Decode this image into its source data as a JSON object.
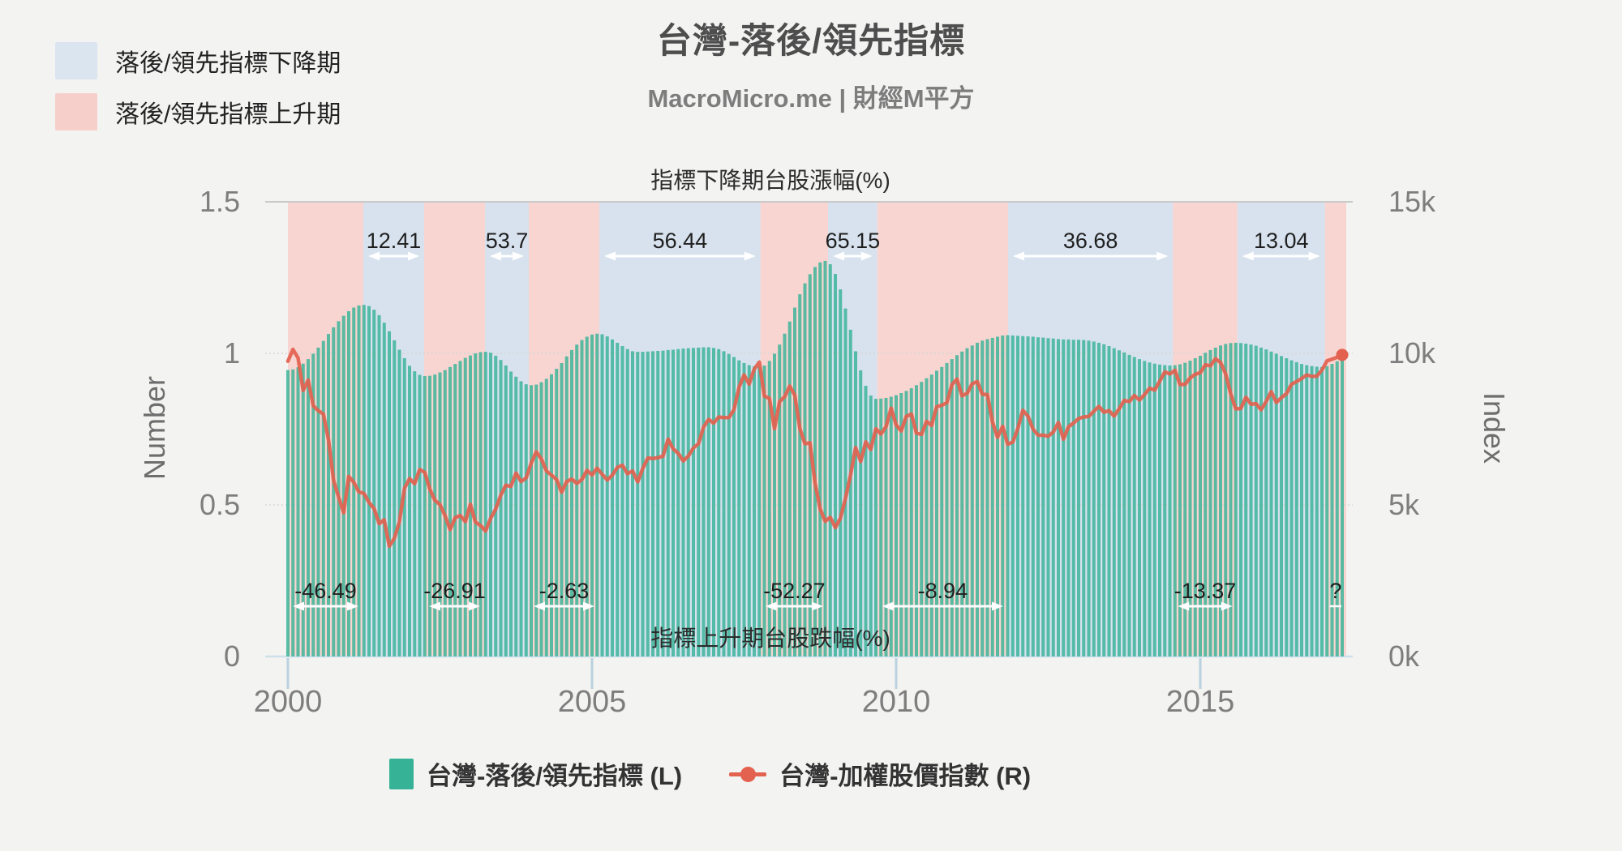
{
  "title": "台灣-落後/領先指標",
  "subtitle": "MacroMicro.me | 財經M平方",
  "zone_legend": {
    "down_label": "落後/領先指標下降期",
    "up_label": "落後/領先指標上升期"
  },
  "series_legend": {
    "bar_label": "台灣-落後/領先指標 (L)",
    "line_label": "台灣-加權股價指數 (R)"
  },
  "colors": {
    "background": "#f3f3f2",
    "band_down": "#d7e2ee",
    "band_up": "#f8d5d1",
    "swatch_down": "#dae5f0",
    "swatch_up": "#f7cfca",
    "bar": "#36b296",
    "line": "#e3614f",
    "grid": "#d6d6d6",
    "grid_strong": "#c9c9c9",
    "axis_line": "#cfe0e9",
    "tick": "#b9d2dd",
    "axis_text": "#7e7e7e",
    "axis_title_text": "#6e6e6e",
    "annotation_text": "#1f1f1f",
    "header_text": "#2b2b2b"
  },
  "chart_data": {
    "type": "bar+line",
    "title": "台灣-落後/領先指標",
    "x": {
      "start_year": 2000,
      "step_months": 1,
      "end_label": "2017-05",
      "tick_values": [
        2000,
        2005,
        2010,
        2015
      ],
      "tick_labels": [
        "2000",
        "2005",
        "2010",
        "2015"
      ]
    },
    "left_axis": {
      "title": "Number",
      "min": 0,
      "max": 1.5,
      "tick_values": [
        0,
        0.5,
        1,
        1.5
      ],
      "tick_labels": [
        "0",
        "0.5",
        "1",
        "1.5"
      ]
    },
    "right_axis": {
      "title": "Index",
      "min": 0,
      "max": 15,
      "tick_values": [
        0,
        5,
        10,
        15
      ],
      "tick_labels": [
        "0k",
        "5k",
        "10k",
        "15k"
      ],
      "unit": "thousand points"
    },
    "headers": {
      "top": "指標下降期台股漲幅(%)",
      "bottom": "指標上升期台股跌幅(%)"
    },
    "bands": [
      {
        "type": "up",
        "start": 2000.0,
        "end": 2001.24,
        "note": "-46.49"
      },
      {
        "type": "down",
        "start": 2001.24,
        "end": 2002.24,
        "note": "12.41"
      },
      {
        "type": "up",
        "start": 2002.24,
        "end": 2003.24,
        "note": "-26.91"
      },
      {
        "type": "down",
        "start": 2003.24,
        "end": 2003.96,
        "note": "53.7"
      },
      {
        "type": "up",
        "start": 2003.96,
        "end": 2005.12,
        "note": "-2.63"
      },
      {
        "type": "down",
        "start": 2005.12,
        "end": 2007.77,
        "note": "56.44"
      },
      {
        "type": "up",
        "start": 2007.77,
        "end": 2008.88,
        "note": "-52.27"
      },
      {
        "type": "down",
        "start": 2008.88,
        "end": 2009.69,
        "note": "65.15"
      },
      {
        "type": "up",
        "start": 2009.69,
        "end": 2011.84,
        "note": "-8.94"
      },
      {
        "type": "down",
        "start": 2011.84,
        "end": 2014.55,
        "note": "36.68"
      },
      {
        "type": "up",
        "start": 2014.55,
        "end": 2015.61,
        "note": "-13.37"
      },
      {
        "type": "down",
        "start": 2015.61,
        "end": 2017.05,
        "note": "13.04"
      },
      {
        "type": "up",
        "start": 2017.05,
        "end": 2017.4,
        "note": "?"
      }
    ],
    "series": [
      {
        "name": "台灣-落後/領先指標 (L)",
        "type": "bar",
        "axis": "left",
        "values": [
          0.945,
          0.947,
          0.954,
          0.966,
          0.981,
          0.999,
          1.019,
          1.041,
          1.064,
          1.086,
          1.106,
          1.124,
          1.139,
          1.151,
          1.158,
          1.16,
          1.156,
          1.144,
          1.126,
          1.101,
          1.073,
          1.043,
          1.012,
          0.984,
          0.959,
          0.941,
          0.929,
          0.925,
          0.926,
          0.93,
          0.937,
          0.945,
          0.955,
          0.965,
          0.975,
          0.985,
          0.993,
          1.0,
          1.004,
          1.005,
          1.002,
          0.992,
          0.978,
          0.96,
          0.94,
          0.923,
          0.908,
          0.898,
          0.895,
          0.897,
          0.905,
          0.916,
          0.931,
          0.949,
          0.968,
          0.99,
          1.011,
          1.029,
          1.044,
          1.055,
          1.062,
          1.065,
          1.063,
          1.056,
          1.046,
          1.035,
          1.024,
          1.014,
          1.007,
          1.005,
          1.005,
          1.006,
          1.007,
          1.008,
          1.009,
          1.011,
          1.012,
          1.014,
          1.016,
          1.017,
          1.018,
          1.019,
          1.02,
          1.02,
          1.018,
          1.014,
          1.007,
          0.998,
          0.988,
          0.977,
          0.968,
          0.961,
          0.957,
          0.955,
          0.96,
          0.975,
          0.999,
          1.029,
          1.065,
          1.105,
          1.151,
          1.195,
          1.231,
          1.261,
          1.285,
          1.3,
          1.305,
          1.294,
          1.262,
          1.211,
          1.148,
          1.078,
          1.007,
          0.944,
          0.893,
          0.861,
          0.85,
          0.851,
          0.853,
          0.857,
          0.862,
          0.869,
          0.876,
          0.885,
          0.895,
          0.906,
          0.918,
          0.93,
          0.943,
          0.955,
          0.968,
          0.981,
          0.994,
          1.006,
          1.017,
          1.026,
          1.035,
          1.042,
          1.047,
          1.051,
          1.055,
          1.059,
          1.06,
          1.059,
          1.058,
          1.057,
          1.056,
          1.055,
          1.053,
          1.052,
          1.05,
          1.049,
          1.047,
          1.046,
          1.046,
          1.045,
          1.045,
          1.044,
          1.042,
          1.039,
          1.035,
          1.03,
          1.024,
          1.017,
          1.01,
          1.003,
          0.995,
          0.988,
          0.981,
          0.975,
          0.97,
          0.966,
          0.963,
          0.961,
          0.96,
          0.961,
          0.964,
          0.969,
          0.976,
          0.984,
          0.992,
          1.002,
          1.011,
          1.019,
          1.026,
          1.031,
          1.034,
          1.035,
          1.034,
          1.032,
          1.029,
          1.025,
          1.019,
          1.013,
          1.006,
          0.999,
          0.991,
          0.984,
          0.977,
          0.971,
          0.965,
          0.961,
          0.958,
          0.956,
          0.955,
          0.958,
          0.965,
          0.974,
          0.98
        ]
      },
      {
        "name": "台灣-加權股價指數 (R)",
        "type": "line",
        "axis": "right",
        "values": [
          9.74,
          10.13,
          9.85,
          8.78,
          9.12,
          8.27,
          8.11,
          8.0,
          7.16,
          5.81,
          5.26,
          4.74,
          5.94,
          5.75,
          5.43,
          5.38,
          5.08,
          4.88,
          4.38,
          4.51,
          3.64,
          3.9,
          4.44,
          5.55,
          5.87,
          5.7,
          6.17,
          6.07,
          5.52,
          5.15,
          5.01,
          4.65,
          4.19,
          4.58,
          4.65,
          4.45,
          5.02,
          4.43,
          4.32,
          4.14,
          4.56,
          4.87,
          5.32,
          5.65,
          5.61,
          6.05,
          5.77,
          5.89,
          6.38,
          6.75,
          6.52,
          6.12,
          5.98,
          5.84,
          5.42,
          5.77,
          5.85,
          5.71,
          5.84,
          6.14,
          5.99,
          6.21,
          6.01,
          5.82,
          5.98,
          6.24,
          6.31,
          6.03,
          6.12,
          5.76,
          6.2,
          6.55,
          6.53,
          6.56,
          6.61,
          7.17,
          6.85,
          6.7,
          6.45,
          6.61,
          6.88,
          7.02,
          7.57,
          7.82,
          7.7,
          7.9,
          7.88,
          7.88,
          8.14,
          8.88,
          9.29,
          8.98,
          9.48,
          9.71,
          8.59,
          8.51,
          7.52,
          8.41,
          8.57,
          8.92,
          8.62,
          7.52,
          7.02,
          7.05,
          5.72,
          4.87,
          4.46,
          4.59,
          4.25,
          4.56,
          5.21,
          5.99,
          6.89,
          6.43,
          7.08,
          6.83,
          7.51,
          7.34,
          7.58,
          8.19,
          7.64,
          7.44,
          7.92,
          8.0,
          7.37,
          7.33,
          7.76,
          7.62,
          8.24,
          8.29,
          8.37,
          8.97,
          9.15,
          8.6,
          8.68,
          9.0,
          9.07,
          8.65,
          8.64,
          7.74,
          7.23,
          7.59,
          7.0,
          7.07,
          7.52,
          8.12,
          7.93,
          7.5,
          7.3,
          7.3,
          7.27,
          7.4,
          7.72,
          7.17,
          7.58,
          7.7,
          7.85,
          7.9,
          7.92,
          8.09,
          8.25,
          8.06,
          8.11,
          7.93,
          8.17,
          8.45,
          8.41,
          8.61,
          8.46,
          8.64,
          8.85,
          8.79,
          9.08,
          9.39,
          9.32,
          9.44,
          8.97,
          8.98,
          9.19,
          9.31,
          9.36,
          9.62,
          9.59,
          9.82,
          9.7,
          9.32,
          8.67,
          8.17,
          8.18,
          8.55,
          8.32,
          8.34,
          8.14,
          8.41,
          8.74,
          8.38,
          8.54,
          8.67,
          8.98,
          9.07,
          9.17,
          9.29,
          9.24,
          9.25,
          9.45,
          9.75,
          9.81,
          9.87,
          9.95
        ]
      }
    ]
  }
}
